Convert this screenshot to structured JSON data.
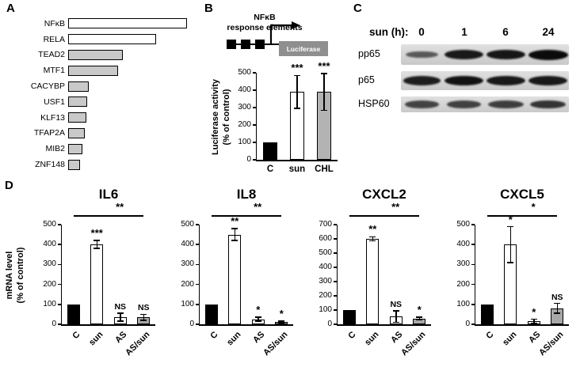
{
  "figure": {
    "panel_labels": {
      "a": "A",
      "b": "B",
      "c": "C",
      "d": "D"
    }
  },
  "panel_b_diagram": {
    "line1": "NFκB",
    "line2": "response elements",
    "reporter": "Luciferase"
  },
  "panel_c": {
    "header": "sun (h):"
  },
  "panel_d": {
    "ylabel_line1": "mRNA level",
    "ylabel_line2": "(% of control)"
  },
  "chart_data": [
    {
      "id": "panel-a-transcription-factor-enrichment",
      "type": "bar",
      "orientation": "horizontal",
      "categories": [
        "NFκB",
        "RELA",
        "TEAD2",
        "MTF1",
        "CACYBP",
        "USF1",
        "KLF13",
        "TFAP2A",
        "MIB2",
        "ZNF148"
      ],
      "values": [
        100,
        74,
        46,
        42,
        17,
        16,
        15,
        14,
        12,
        10
      ],
      "value_units": "relative bar length (% of max, axis unlabeled)",
      "bar_fills": [
        "#ffffff",
        "#ffffff",
        "#c9c9c9",
        "#c9c9c9",
        "#c9c9c9",
        "#c9c9c9",
        "#c9c9c9",
        "#c9c9c9",
        "#c9c9c9",
        "#c9c9c9"
      ]
    },
    {
      "id": "panel-b-luciferase-activity",
      "type": "bar",
      "ylabel_line1": "Luciferase activity",
      "ylabel_line2": "(% of control)",
      "ylim": [
        0,
        500
      ],
      "yticks": [
        0,
        100,
        200,
        300,
        400,
        500
      ],
      "categories": [
        "C",
        "sun",
        "CHL"
      ],
      "values": [
        100,
        390,
        390
      ],
      "errors": [
        0,
        95,
        105
      ],
      "significance": [
        "",
        "***",
        "***"
      ],
      "bar_fills": [
        "#000000",
        "#ffffff",
        "#b3b3b3"
      ]
    },
    {
      "id": "panel-d-il6",
      "type": "bar",
      "title": "IL6",
      "ylim": [
        0,
        500
      ],
      "yticks": [
        0,
        100,
        200,
        300,
        400,
        500
      ],
      "categories": [
        "C",
        "sun",
        "AS",
        "AS/sun"
      ],
      "values": [
        100,
        400,
        35,
        35
      ],
      "errors": [
        0,
        20,
        20,
        15
      ],
      "significance": [
        "",
        "***",
        "NS",
        "NS"
      ],
      "bracket": "**",
      "bar_fills": [
        "#000000",
        "#ffffff",
        "#ffffff",
        "#a8a8a8"
      ]
    },
    {
      "id": "panel-d-il8",
      "type": "bar",
      "title": "IL8",
      "ylim": [
        0,
        500
      ],
      "yticks": [
        0,
        100,
        200,
        300,
        400,
        500
      ],
      "categories": [
        "C",
        "sun",
        "AS",
        "AS/sun"
      ],
      "values": [
        100,
        450,
        25,
        10
      ],
      "errors": [
        0,
        30,
        10,
        5
      ],
      "significance": [
        "",
        "**",
        "*",
        "*"
      ],
      "bracket": "**",
      "bar_fills": [
        "#000000",
        "#ffffff",
        "#ffffff",
        "#a8a8a8"
      ]
    },
    {
      "id": "panel-d-cxcl2",
      "type": "bar",
      "title": "CXCL2",
      "ylim": [
        0,
        700
      ],
      "yticks": [
        0,
        100,
        200,
        300,
        400,
        500,
        600,
        700
      ],
      "categories": [
        "C",
        "sun",
        "AS",
        "AS/sun"
      ],
      "values": [
        100,
        600,
        55,
        40
      ],
      "errors": [
        0,
        15,
        40,
        10
      ],
      "significance": [
        "",
        "**",
        "NS",
        "*"
      ],
      "bracket": "**",
      "bar_fills": [
        "#000000",
        "#ffffff",
        "#ffffff",
        "#a8a8a8"
      ]
    },
    {
      "id": "panel-d-cxcl5",
      "type": "bar",
      "title": "CXCL5",
      "ylim": [
        0,
        500
      ],
      "yticks": [
        0,
        100,
        200,
        300,
        400,
        500
      ],
      "categories": [
        "C",
        "sun",
        "AS",
        "AS/sun"
      ],
      "values": [
        100,
        400,
        15,
        80
      ],
      "errors": [
        0,
        90,
        10,
        25
      ],
      "significance": [
        "",
        "*",
        "*",
        "NS"
      ],
      "bracket": "*",
      "bar_fills": [
        "#000000",
        "#ffffff",
        "#ffffff",
        "#a8a8a8"
      ]
    },
    {
      "id": "panel-c-western-blot",
      "type": "heatmap",
      "rows": [
        "pp65",
        "p65",
        "HSP60"
      ],
      "columns": [
        "0",
        "1",
        "6",
        "24"
      ],
      "band_intensity": [
        [
          0.45,
          0.9,
          0.92,
          1.0
        ],
        [
          0.85,
          0.95,
          0.9,
          0.9
        ],
        [
          0.6,
          0.62,
          0.65,
          0.72
        ]
      ]
    }
  ]
}
